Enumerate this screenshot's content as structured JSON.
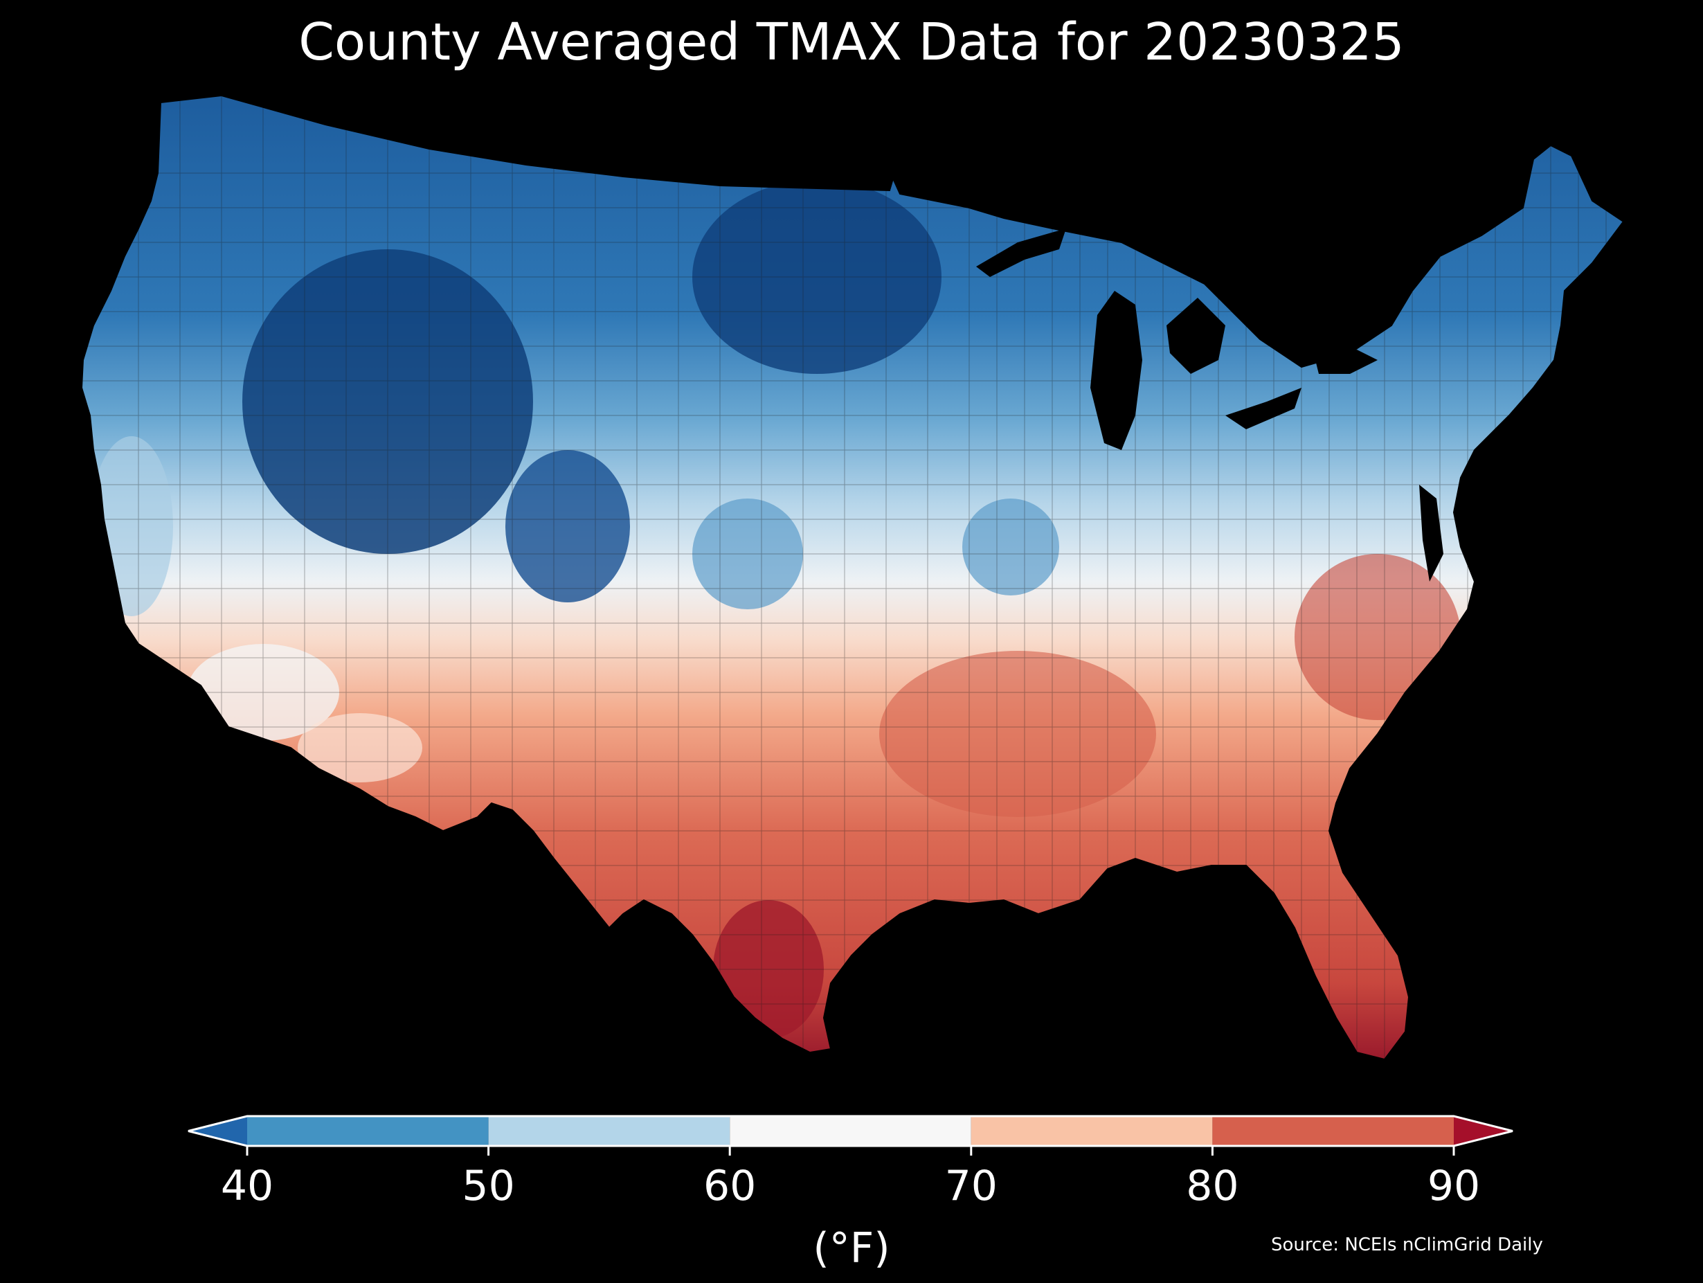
{
  "title": "County Averaged TMAX Data for 20230325",
  "source": "Source: NCEIs nClimGrid Daily",
  "unit_label": "(°F)",
  "colorbar": {
    "ticks": [
      "40",
      "50",
      "60",
      "70",
      "80",
      "90"
    ],
    "tick_values": [
      40,
      50,
      60,
      70,
      80,
      90
    ],
    "bins": [
      {
        "from": null,
        "to": 40,
        "color": "#2166ac"
      },
      {
        "from": 40,
        "to": 50,
        "color": "#4393c3"
      },
      {
        "from": 50,
        "to": 60,
        "color": "#b3d5e9"
      },
      {
        "from": 60,
        "to": 70,
        "color": "#f7f7f7"
      },
      {
        "from": 70,
        "to": 80,
        "color": "#f9c3a6"
      },
      {
        "from": 80,
        "to": 90,
        "color": "#d6604d"
      },
      {
        "from": 90,
        "to": null,
        "color": "#a50f2a"
      }
    ],
    "extend": "both"
  },
  "map": {
    "region": "Contiguous United States",
    "background": "#000000",
    "water_color": "#000000",
    "unit": "county"
  }
}
